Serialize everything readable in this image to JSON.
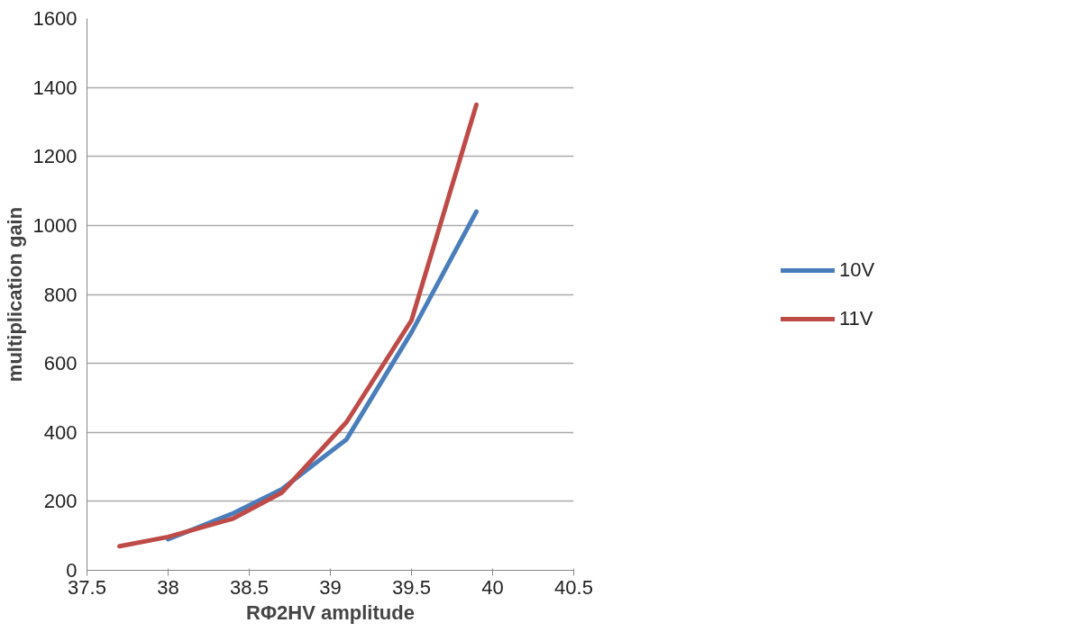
{
  "chart_data": {
    "type": "line",
    "xlabel": "RΦ2HV amplitude",
    "ylabel": "multiplication gain",
    "xlim": [
      37.5,
      40.5
    ],
    "xticks": [
      37.5,
      38,
      38.5,
      39,
      39.5,
      40,
      40.5
    ],
    "ylim": [
      0,
      1600
    ],
    "yticks": [
      0,
      200,
      400,
      600,
      800,
      1000,
      1200,
      1400,
      1600
    ],
    "grid": "y",
    "legend": "right",
    "marker": "none",
    "line_style": "solid",
    "series": [
      {
        "name": "10V",
        "color": "#4a7ebb",
        "x": [
          38.0,
          38.4,
          38.7,
          39.1,
          39.5,
          39.9
        ],
        "values": [
          90,
          165,
          235,
          380,
          690,
          1040
        ]
      },
      {
        "name": "11V",
        "color": "#be4b48",
        "x": [
          37.7,
          38.0,
          38.4,
          38.7,
          39.1,
          39.5,
          39.9
        ],
        "values": [
          70,
          97,
          150,
          225,
          430,
          725,
          1350
        ]
      }
    ]
  }
}
